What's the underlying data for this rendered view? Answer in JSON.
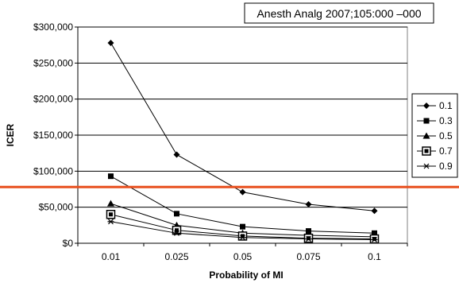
{
  "chart_data": {
    "type": "line",
    "citation": "Anesth Analg 2007;105:000 –000",
    "xlabel": "Probability of MI",
    "ylabel": "ICER",
    "categories": [
      "0.01",
      "0.025",
      "0.05",
      "0.075",
      "0.1"
    ],
    "ylim": [
      0,
      300000
    ],
    "yticks": [
      0,
      50000,
      100000,
      150000,
      200000,
      250000,
      300000
    ],
    "ytick_labels": [
      "$0",
      "$50,000",
      "$100,000",
      "$150,000",
      "$200,000",
      "$250,000",
      "$300,000"
    ],
    "grid": true,
    "legend_position": "right",
    "threshold_line": {
      "value": 78000,
      "color": "#e8501f"
    },
    "series": [
      {
        "name": "0.1",
        "marker": "diamond",
        "values": [
          278000,
          123000,
          71000,
          54000,
          45000
        ]
      },
      {
        "name": "0.3",
        "marker": "square",
        "values": [
          93000,
          41000,
          23000,
          17000,
          14000
        ]
      },
      {
        "name": "0.5",
        "marker": "triangle",
        "values": [
          55000,
          25000,
          14000,
          11000,
          9000
        ]
      },
      {
        "name": "0.7",
        "marker": "boxed-square",
        "values": [
          40000,
          18000,
          10000,
          7000,
          6000
        ]
      },
      {
        "name": "0.9",
        "marker": "star",
        "values": [
          30000,
          14000,
          8000,
          6000,
          5000
        ]
      }
    ]
  }
}
